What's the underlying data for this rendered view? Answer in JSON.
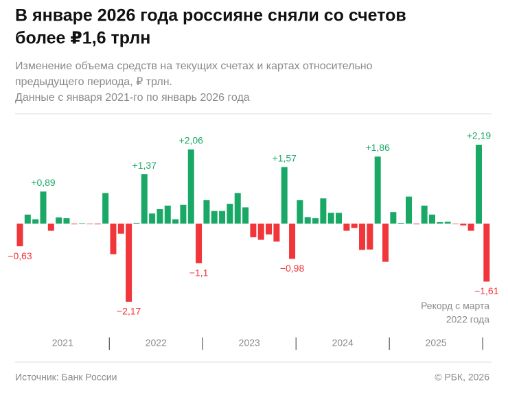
{
  "chart_data": {
    "type": "bar",
    "title": [
      "В январе 2026 года россияне сняли со счетов",
      "более ₽1,6 трлн"
    ],
    "subtitle": [
      "Изменение объема средств на текущих счетах и картах относительно",
      "предыдущего периода, ₽ трлн.",
      "Данные с января 2021-го по январь 2026 года"
    ],
    "year_labels": [
      "2021",
      "2022",
      "2023",
      "2024",
      "2025"
    ],
    "positive_color": "#1aa867",
    "negative_color": "#f0363a",
    "values": [
      -0.63,
      0.25,
      0.12,
      0.89,
      -0.2,
      0.17,
      0.15,
      -0.02,
      0.01,
      -0.01,
      -0.02,
      0.85,
      -0.85,
      -0.28,
      -2.17,
      0.02,
      1.37,
      0.28,
      0.4,
      0.5,
      0.12,
      0.52,
      2.06,
      -1.1,
      0.65,
      0.35,
      0.35,
      0.55,
      0.85,
      0.45,
      -0.38,
      -0.45,
      -0.3,
      -0.5,
      1.57,
      -0.98,
      0.65,
      0.18,
      0.15,
      0.7,
      0.3,
      0.3,
      -0.2,
      -0.12,
      -0.73,
      -0.72,
      1.86,
      -1.06,
      0.32,
      0.02,
      0.75,
      -0.02,
      0.5,
      0.25,
      0.04,
      0.05,
      -0.01,
      -0.05,
      -0.2,
      2.19,
      -1.61
    ],
    "value_labels": [
      "−0,63",
      null,
      null,
      "+0,89",
      null,
      null,
      null,
      null,
      null,
      null,
      null,
      null,
      null,
      null,
      "−2,17",
      null,
      "+1,37",
      null,
      null,
      null,
      null,
      null,
      "+2,06",
      "−1,1",
      null,
      null,
      null,
      null,
      null,
      null,
      null,
      null,
      null,
      null,
      "+1,57",
      "−0,98",
      null,
      null,
      null,
      null,
      null,
      null,
      null,
      null,
      null,
      null,
      "+1,86",
      null,
      null,
      null,
      null,
      null,
      null,
      null,
      null,
      null,
      null,
      null,
      null,
      "+2,19",
      "−1,61"
    ],
    "annotation": [
      "Рекорд с марта",
      "2022 года"
    ],
    "source": "Источник: Банк России",
    "copyright": "© РБК, 2026"
  }
}
